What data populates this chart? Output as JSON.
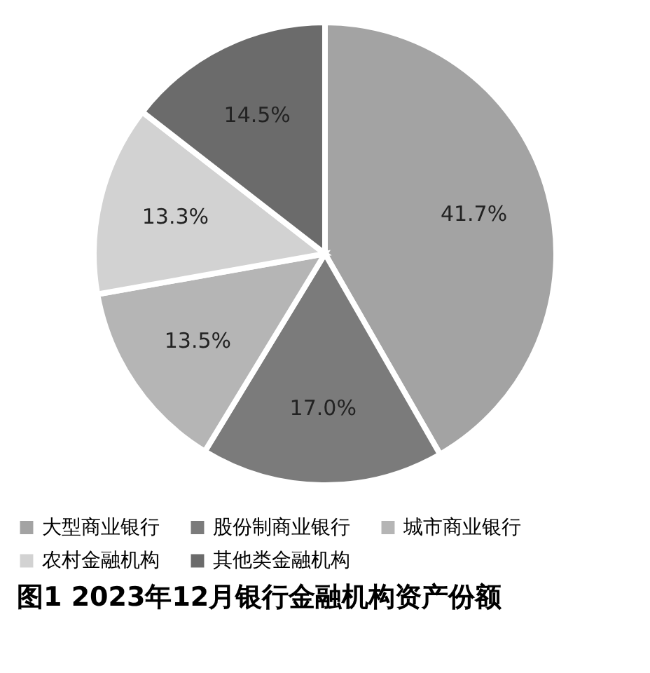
{
  "chart_data": {
    "type": "pie",
    "title": "图1  2023年12月银行金融机构资产份额",
    "categories": [
      "大型商业银行",
      "股份制商业银行",
      "城市商业银行",
      "农村金融机构",
      "其他类金融机构"
    ],
    "values": [
      41.7,
      17.0,
      13.5,
      13.3,
      14.5
    ],
    "value_labels": [
      "41.7%",
      "17.0%",
      "13.5%",
      "13.3%",
      "14.5%"
    ],
    "colors": [
      "#a3a3a3",
      "#7b7b7b",
      "#b5b5b5",
      "#d2d2d2",
      "#6b6b6b"
    ],
    "legend": "bottom"
  }
}
